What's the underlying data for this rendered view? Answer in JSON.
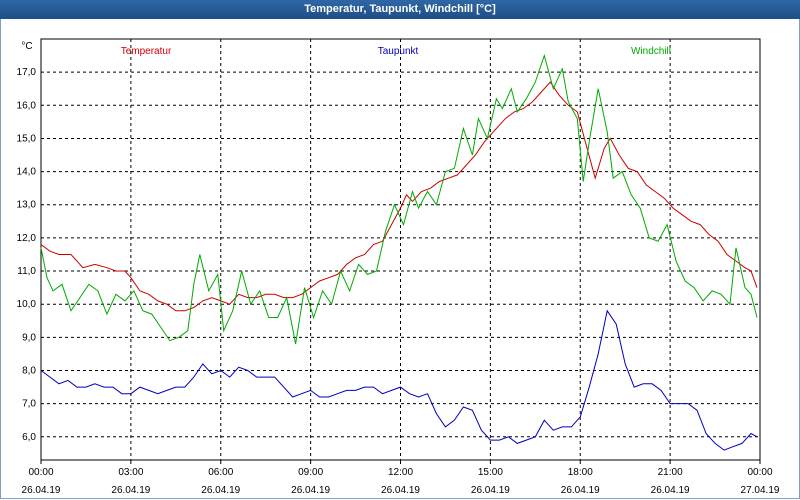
{
  "window": {
    "title": "Temperatur, Taupunkt, Windchill [°C]"
  },
  "chart_data": {
    "type": "line",
    "title": "Temperatur, Taupunkt, Windchill [°C]",
    "ylabel": "°C",
    "ylim": [
      5.3,
      18.0
    ],
    "xlim": [
      0,
      24
    ],
    "y_ticks": [
      "6,0",
      "7,0",
      "8,0",
      "9,0",
      "10,0",
      "11,0",
      "12,0",
      "13,0",
      "14,0",
      "15,0",
      "16,0",
      "17,0"
    ],
    "y_tick_values": [
      6,
      7,
      8,
      9,
      10,
      11,
      12,
      13,
      14,
      15,
      16,
      17
    ],
    "x_ticks": [
      {
        "time": "00:00",
        "date": "26.04.19",
        "h": 0
      },
      {
        "time": "03:00",
        "date": "26.04.19",
        "h": 3
      },
      {
        "time": "06:00",
        "date": "26.04.19",
        "h": 6
      },
      {
        "time": "09:00",
        "date": "26.04.19",
        "h": 9
      },
      {
        "time": "12:00",
        "date": "26.04.19",
        "h": 12
      },
      {
        "time": "15:00",
        "date": "26.04.19",
        "h": 15
      },
      {
        "time": "18:00",
        "date": "26.04.19",
        "h": 18
      },
      {
        "time": "21:00",
        "date": "26.04.19",
        "h": 21
      },
      {
        "time": "00:00",
        "date": "27.04.19",
        "h": 24
      }
    ],
    "grid": true,
    "legend": [
      "Temperatur",
      "Taupunkt",
      "Windchill"
    ],
    "series": [
      {
        "name": "Temperatur",
        "color": "#cc0000",
        "x": [
          0,
          0.3,
          0.6,
          1,
          1.4,
          1.8,
          2.2,
          2.5,
          2.8,
          3,
          3.3,
          3.6,
          3.9,
          4.2,
          4.5,
          4.8,
          5.1,
          5.4,
          5.7,
          6,
          6.3,
          6.6,
          6.9,
          7.2,
          7.5,
          7.8,
          8.1,
          8.4,
          8.7,
          9,
          9.3,
          9.6,
          9.9,
          10.2,
          10.5,
          10.8,
          11.1,
          11.4,
          11.7,
          12,
          12.2,
          12.4,
          12.7,
          13,
          13.3,
          13.6,
          13.9,
          14.2,
          14.5,
          14.8,
          15,
          15.2,
          15.5,
          15.8,
          16.1,
          16.4,
          16.7,
          17,
          17.3,
          17.6,
          17.9,
          18.2,
          18.5,
          18.8,
          19,
          19.3,
          19.6,
          19.9,
          20.2,
          20.5,
          20.8,
          21.1,
          21.4,
          21.7,
          22,
          22.3,
          22.6,
          22.9,
          23.2,
          23.5,
          23.7,
          23.9
        ],
        "y": [
          11.8,
          11.6,
          11.5,
          11.5,
          11.1,
          11.2,
          11.1,
          11.0,
          11.0,
          10.8,
          10.4,
          10.3,
          10.1,
          10.0,
          9.8,
          9.8,
          9.9,
          10.1,
          10.2,
          10.1,
          10.0,
          10.3,
          10.2,
          10.2,
          10.3,
          10.3,
          10.2,
          10.2,
          10.3,
          10.5,
          10.7,
          10.8,
          10.9,
          11.2,
          11.4,
          11.5,
          11.8,
          11.9,
          12.4,
          12.9,
          13.3,
          13.1,
          13.4,
          13.5,
          13.7,
          13.8,
          13.9,
          14.2,
          14.5,
          14.9,
          15.1,
          15.3,
          15.6,
          15.8,
          15.9,
          16.1,
          16.4,
          16.7,
          16.3,
          16.0,
          15.8,
          14.8,
          13.8,
          14.7,
          15.0,
          14.5,
          14.1,
          14.0,
          13.6,
          13.4,
          13.2,
          12.9,
          12.7,
          12.5,
          12.4,
          12.1,
          11.9,
          11.5,
          11.3,
          11.1,
          11.0,
          10.5
        ]
      },
      {
        "name": "Taupunkt",
        "color": "#0000bb",
        "x": [
          0,
          0.3,
          0.6,
          0.9,
          1.2,
          1.5,
          1.8,
          2.1,
          2.4,
          2.7,
          3,
          3.3,
          3.6,
          3.9,
          4.2,
          4.5,
          4.8,
          5.1,
          5.4,
          5.7,
          6,
          6.3,
          6.6,
          6.9,
          7.2,
          7.5,
          7.8,
          8.1,
          8.4,
          8.7,
          9,
          9.3,
          9.6,
          9.9,
          10.2,
          10.5,
          10.8,
          11.1,
          11.4,
          11.7,
          12,
          12.3,
          12.6,
          12.9,
          13.2,
          13.5,
          13.8,
          14.1,
          14.4,
          14.7,
          15,
          15.3,
          15.6,
          15.9,
          16.2,
          16.5,
          16.8,
          17.1,
          17.4,
          17.7,
          18,
          18.3,
          18.6,
          18.9,
          19.2,
          19.5,
          19.8,
          20.1,
          20.4,
          20.7,
          21,
          21.3,
          21.6,
          21.9,
          22.2,
          22.5,
          22.8,
          23.1,
          23.4,
          23.7,
          23.9
        ],
        "y": [
          8.0,
          7.8,
          7.6,
          7.7,
          7.5,
          7.5,
          7.6,
          7.5,
          7.5,
          7.3,
          7.3,
          7.5,
          7.4,
          7.3,
          7.4,
          7.5,
          7.5,
          7.8,
          8.2,
          7.9,
          8.0,
          7.8,
          8.1,
          8.0,
          7.8,
          7.8,
          7.8,
          7.5,
          7.2,
          7.3,
          7.4,
          7.2,
          7.2,
          7.3,
          7.4,
          7.4,
          7.5,
          7.5,
          7.3,
          7.4,
          7.5,
          7.3,
          7.2,
          7.3,
          6.7,
          6.3,
          6.5,
          6.9,
          6.8,
          6.2,
          5.9,
          5.9,
          6.0,
          5.8,
          5.9,
          6.0,
          6.5,
          6.2,
          6.3,
          6.3,
          6.6,
          7.5,
          8.5,
          9.8,
          9.4,
          8.2,
          7.5,
          7.6,
          7.6,
          7.4,
          7.0,
          7.0,
          7.0,
          6.8,
          6.1,
          5.8,
          5.6,
          5.7,
          5.8,
          6.1,
          6.0
        ]
      },
      {
        "name": "Windchill",
        "color": "#00aa00",
        "x": [
          0,
          0.2,
          0.4,
          0.7,
          1,
          1.3,
          1.6,
          1.9,
          2.2,
          2.5,
          2.8,
          3.1,
          3.4,
          3.7,
          4,
          4.3,
          4.6,
          4.9,
          5.1,
          5.3,
          5.6,
          5.9,
          6.1,
          6.4,
          6.7,
          7,
          7.3,
          7.6,
          7.9,
          8.2,
          8.5,
          8.8,
          9.1,
          9.4,
          9.7,
          10,
          10.3,
          10.6,
          10.9,
          11.2,
          11.5,
          11.8,
          12.1,
          12.4,
          12.6,
          12.9,
          13.2,
          13.5,
          13.8,
          14.1,
          14.4,
          14.6,
          14.9,
          15.2,
          15.4,
          15.7,
          15.9,
          16.2,
          16.5,
          16.8,
          17.1,
          17.4,
          17.6,
          17.9,
          18.1,
          18.3,
          18.6,
          18.9,
          19.1,
          19.4,
          19.7,
          20,
          20.3,
          20.6,
          20.9,
          21.2,
          21.5,
          21.8,
          22.1,
          22.4,
          22.7,
          23,
          23.2,
          23.5,
          23.7,
          23.9
        ],
        "y": [
          11.7,
          10.8,
          10.4,
          10.6,
          9.8,
          10.2,
          10.6,
          10.4,
          9.7,
          10.3,
          10.1,
          10.4,
          9.8,
          9.7,
          9.3,
          8.9,
          9.0,
          9.2,
          10.6,
          11.5,
          10.4,
          10.9,
          9.2,
          9.8,
          11.0,
          10.0,
          10.4,
          9.6,
          9.6,
          10.2,
          8.8,
          10.5,
          9.6,
          10.4,
          10.0,
          11.0,
          10.4,
          11.2,
          10.9,
          11.0,
          12.2,
          13.0,
          12.4,
          13.4,
          12.9,
          13.4,
          13.0,
          14.0,
          14.1,
          15.3,
          14.5,
          15.6,
          15.0,
          16.2,
          15.9,
          16.5,
          15.8,
          16.2,
          16.7,
          17.5,
          16.5,
          17.1,
          16.1,
          15.6,
          13.7,
          14.9,
          16.5,
          15.2,
          13.8,
          14.0,
          13.3,
          12.9,
          12.0,
          11.9,
          12.4,
          11.3,
          10.7,
          10.5,
          10.1,
          10.4,
          10.3,
          10.0,
          11.7,
          10.5,
          10.3,
          9.6
        ]
      }
    ]
  }
}
